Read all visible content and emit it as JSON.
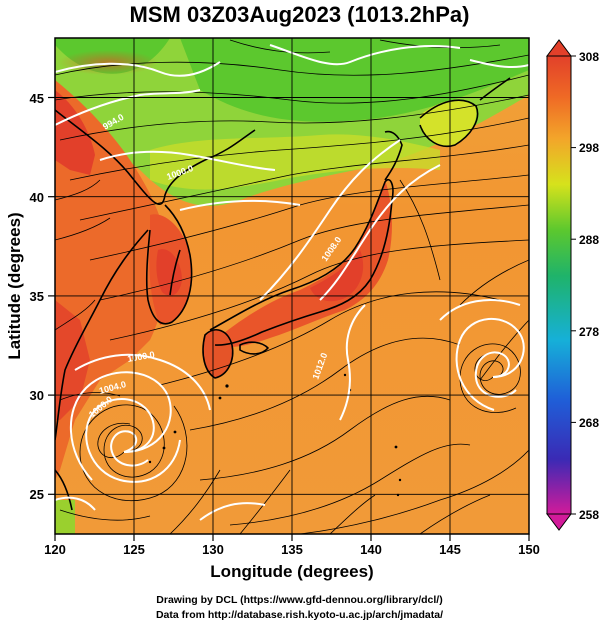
{
  "title": "MSM 03Z03Aug2023 (1013.2hPa)",
  "map": {
    "lon_range": [
      120,
      150
    ],
    "lat_range": [
      22.5,
      47.5
    ],
    "x_label": "Longitude (degrees)",
    "y_label": "Latitude  (degrees)",
    "x_ticks": [
      "120",
      "125",
      "130",
      "135",
      "140",
      "145",
      "150"
    ],
    "y_ticks": [
      "25",
      "30",
      "35",
      "40",
      "45"
    ],
    "shading": "temperature",
    "vectors": "streamlines",
    "contour_color": "#ffffff",
    "cyclones": [
      {
        "name": "typhoon",
        "lon": 124.2,
        "lat": 27.3
      },
      {
        "name": "low",
        "lon": 147.5,
        "lat": 30.8
      }
    ]
  },
  "colorbar": {
    "range": [
      258,
      308
    ],
    "ticks": [
      "308",
      "298",
      "288",
      "278",
      "268",
      "258"
    ],
    "colors": [
      "#d21b9a",
      "#3a2ab5",
      "#1f5fd8",
      "#16b0d8",
      "#1fb36a",
      "#5cc82e",
      "#d6e21c",
      "#f3a52a",
      "#ef6a25",
      "#e2402a"
    ]
  },
  "footer": {
    "line1": "Drawing by DCL (https://www.gfd-dennou.org/library/dcl/)",
    "line2": "Data from http://database.rish.kyoto-u.ac.jp/arch/jmadata/"
  }
}
